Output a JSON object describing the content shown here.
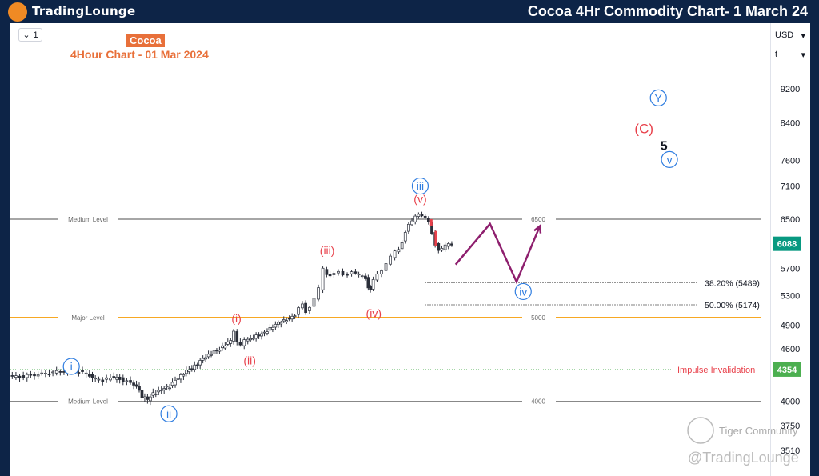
{
  "header": {
    "logo_text": "TradingLounge",
    "title": "Cocoa 4Hr Commodity Chart- 1 March 24"
  },
  "toolbar": {
    "interval_label": "1",
    "currency": "USD",
    "scale": "t"
  },
  "chart_header": {
    "symbol_badge": "Cocoa",
    "subtitle": "4Hour Chart - 01 Mar 2024"
  },
  "colors": {
    "background": "#0d2447",
    "orange": "#e8703a",
    "blue_label": "#2f7de0",
    "red_label": "#e8414b",
    "major_level": "#f7a823",
    "medium_level": "#888888",
    "projection": "#8e1f6e",
    "invalidation": "#4caf50",
    "last_price": "#089981"
  },
  "chart_data": {
    "type": "candlestick",
    "title": "4Hour Chart - 01 Mar 2024",
    "y_axis_ticks": [
      9200,
      8400,
      7600,
      7100,
      6500,
      5700,
      5300,
      4900,
      4600,
      4000,
      3750,
      3510
    ],
    "y_axis_scale": "log",
    "ylim": [
      3450,
      9800
    ],
    "close_path": [
      [
        0,
        4275
      ],
      [
        10,
        4270
      ],
      [
        20,
        4290
      ],
      [
        30,
        4300
      ],
      [
        40,
        4320
      ],
      [
        50,
        4340
      ],
      [
        60,
        4335
      ],
      [
        70,
        4310
      ],
      [
        78,
        4240
      ],
      [
        85,
        4230
      ],
      [
        92,
        4260
      ],
      [
        100,
        4250
      ],
      [
        110,
        4200
      ],
      [
        115,
        4170
      ],
      [
        120,
        4050
      ],
      [
        125,
        4020
      ],
      [
        130,
        4080
      ],
      [
        135,
        4110
      ],
      [
        140,
        4150
      ],
      [
        145,
        4160
      ],
      [
        150,
        4230
      ],
      [
        155,
        4280
      ],
      [
        160,
        4340
      ],
      [
        165,
        4370
      ],
      [
        170,
        4420
      ],
      [
        175,
        4480
      ],
      [
        180,
        4520
      ],
      [
        185,
        4570
      ],
      [
        190,
        4600
      ],
      [
        195,
        4650
      ],
      [
        200,
        4700
      ],
      [
        203,
        4830
      ],
      [
        206,
        4700
      ],
      [
        209,
        4650
      ],
      [
        213,
        4700
      ],
      [
        218,
        4720
      ],
      [
        223,
        4760
      ],
      [
        228,
        4790
      ],
      [
        233,
        4830
      ],
      [
        238,
        4880
      ],
      [
        243,
        4930
      ],
      [
        248,
        4960
      ],
      [
        253,
        4990
      ],
      [
        258,
        5040
      ],
      [
        262,
        5120
      ],
      [
        265,
        5180
      ],
      [
        268,
        5080
      ],
      [
        272,
        5150
      ],
      [
        276,
        5260
      ],
      [
        280,
        5400
      ],
      [
        284,
        5700
      ],
      [
        287,
        5620
      ],
      [
        290,
        5600
      ],
      [
        294,
        5620
      ],
      [
        298,
        5640
      ],
      [
        302,
        5600
      ],
      [
        306,
        5620
      ],
      [
        310,
        5660
      ],
      [
        313,
        5620
      ],
      [
        316,
        5600
      ],
      [
        319,
        5590
      ],
      [
        322,
        5560
      ],
      [
        324,
        5420
      ],
      [
        326,
        5380
      ],
      [
        329,
        5520
      ],
      [
        333,
        5620
      ],
      [
        337,
        5680
      ],
      [
        341,
        5780
      ],
      [
        345,
        5880
      ],
      [
        349,
        5960
      ],
      [
        352,
        6000
      ],
      [
        355,
        6120
      ],
      [
        358,
        6280
      ],
      [
        361,
        6400
      ],
      [
        364,
        6460
      ],
      [
        367,
        6560
      ],
      [
        370,
        6600
      ],
      [
        373,
        6560
      ],
      [
        376,
        6520
      ],
      [
        379,
        6440
      ],
      [
        382,
        6260
      ],
      [
        385,
        6080
      ],
      [
        388,
        5980
      ],
      [
        391,
        6000
      ],
      [
        394,
        6060
      ],
      [
        397,
        6100
      ],
      [
        400,
        6080
      ]
    ],
    "last_price": 6088,
    "horizontal_levels": [
      {
        "name": "Medium Level",
        "value": 6500,
        "label": "6500",
        "kind": "medium"
      },
      {
        "name": "Major Level",
        "value": 5000,
        "label": "5000",
        "kind": "major"
      },
      {
        "name": "Medium Level",
        "value": 4000,
        "label": "4000",
        "kind": "medium"
      }
    ],
    "fib_levels": [
      {
        "label": "38.20% (5489)",
        "value": 5489
      },
      {
        "label": "50.00% (5174)",
        "value": 5174
      }
    ],
    "invalidation": {
      "label": "Impulse Invalidation",
      "value": 4354,
      "badge": "4354"
    },
    "projection_path": [
      [
        402,
        5760
      ],
      [
        433,
        6420
      ],
      [
        457,
        5500
      ],
      [
        478,
        6380
      ]
    ],
    "wave_labels": [
      {
        "text": "i",
        "x": 55,
        "y": 4390,
        "style": "blue-circle"
      },
      {
        "text": "ii",
        "x": 143,
        "y": 3870,
        "style": "blue-circle"
      },
      {
        "text": "(i)",
        "x": 204,
        "y": 4990,
        "style": "red"
      },
      {
        "text": "(ii)",
        "x": 216,
        "y": 4460,
        "style": "red"
      },
      {
        "text": "(iii)",
        "x": 286,
        "y": 5980,
        "style": "red"
      },
      {
        "text": "(iv)",
        "x": 328,
        "y": 5060,
        "style": "red"
      },
      {
        "text": "(v)",
        "x": 370,
        "y": 6860,
        "style": "red"
      },
      {
        "text": "iii",
        "x": 370,
        "y": 7100,
        "style": "blue-circle"
      },
      {
        "text": "iv",
        "x": 463,
        "y": 5360,
        "style": "blue-circle"
      },
      {
        "text": "Y",
        "x": 585,
        "y": 8980,
        "style": "blue-circle"
      },
      {
        "text": "(C)",
        "x": 572,
        "y": 8280,
        "style": "red-large"
      },
      {
        "text": "5",
        "x": 590,
        "y": 7920,
        "style": "black"
      },
      {
        "text": "v",
        "x": 595,
        "y": 7620,
        "style": "blue-circle"
      }
    ]
  },
  "watermarks": {
    "tiger": "Tiger Community",
    "handle": "@TradingLounge"
  }
}
